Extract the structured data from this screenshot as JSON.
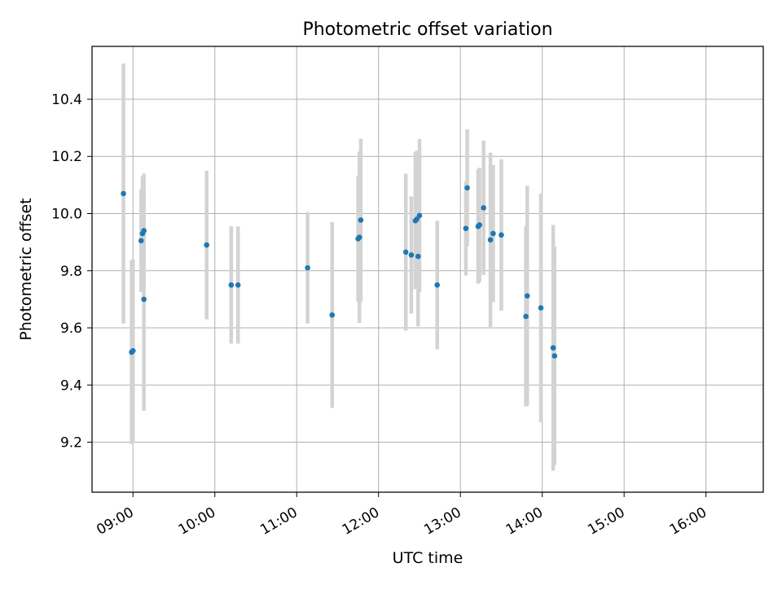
{
  "chart_data": {
    "type": "scatter",
    "title": "Photometric offset variation",
    "xlabel": "UTC time",
    "ylabel": "Photometric offset",
    "x_unit": "UTC hh:mm",
    "xlim": [
      "08:30",
      "16:42"
    ],
    "ylim": [
      9.025,
      10.585
    ],
    "xticks": [
      "09:00",
      "10:00",
      "11:00",
      "12:00",
      "13:00",
      "14:00",
      "15:00",
      "16:00"
    ],
    "yticks": [
      9.2,
      9.4,
      9.6,
      9.8,
      10.0,
      10.2,
      10.4
    ],
    "ytick_labels": [
      "9.2",
      "9.4",
      "9.6",
      "9.8",
      "10.0",
      "10.2",
      "10.4"
    ],
    "grid": true,
    "legend": "none",
    "series": [
      {
        "point_color": "#1f77b4",
        "errorbar_color": "#d3d3d3",
        "points": [
          {
            "x": "08:53",
            "y": 10.07,
            "yerr": 0.455
          },
          {
            "x": "08:59",
            "y": 9.515,
            "yerr": 0.322
          },
          {
            "x": "08:60",
            "y": 9.52,
            "yerr": 0.32
          },
          {
            "x": "09:06",
            "y": 9.905,
            "yerr": 0.18
          },
          {
            "x": "09:07",
            "y": 9.93,
            "yerr": 0.2
          },
          {
            "x": "09:08",
            "y": 9.94,
            "yerr": 0.2
          },
          {
            "x": "09:08",
            "y": 9.7,
            "yerr": 0.39
          },
          {
            "x": "09:54",
            "y": 9.89,
            "yerr": 0.26
          },
          {
            "x": "10:12",
            "y": 9.75,
            "yerr": 0.205
          },
          {
            "x": "10:17",
            "y": 9.75,
            "yerr": 0.205
          },
          {
            "x": "11:08",
            "y": 9.81,
            "yerr": 0.195
          },
          {
            "x": "11:26",
            "y": 9.645,
            "yerr": 0.325
          },
          {
            "x": "11:45",
            "y": 9.912,
            "yerr": 0.22
          },
          {
            "x": "11:46",
            "y": 9.917,
            "yerr": 0.3
          },
          {
            "x": "11:47",
            "y": 9.977,
            "yerr": 0.285
          },
          {
            "x": "12:20",
            "y": 9.865,
            "yerr": 0.275
          },
          {
            "x": "12:24",
            "y": 9.855,
            "yerr": 0.205
          },
          {
            "x": "12:27",
            "y": 9.975,
            "yerr": 0.24
          },
          {
            "x": "12:28",
            "y": 9.98,
            "yerr": 0.24
          },
          {
            "x": "12:29",
            "y": 9.85,
            "yerr": 0.245
          },
          {
            "x": "12:30",
            "y": 9.993,
            "yerr": 0.268
          },
          {
            "x": "12:43",
            "y": 9.75,
            "yerr": 0.225
          },
          {
            "x": "13:04",
            "y": 9.948,
            "yerr": 0.165
          },
          {
            "x": "13:05",
            "y": 10.09,
            "yerr": 0.205
          },
          {
            "x": "13:13",
            "y": 9.955,
            "yerr": 0.2
          },
          {
            "x": "13:14",
            "y": 9.96,
            "yerr": 0.2
          },
          {
            "x": "13:17",
            "y": 10.02,
            "yerr": 0.235
          },
          {
            "x": "13:22",
            "y": 9.908,
            "yerr": 0.305
          },
          {
            "x": "13:24",
            "y": 9.93,
            "yerr": 0.24
          },
          {
            "x": "13:30",
            "y": 9.925,
            "yerr": 0.265
          },
          {
            "x": "13:48",
            "y": 9.64,
            "yerr": 0.315
          },
          {
            "x": "13:49",
            "y": 9.712,
            "yerr": 0.385
          },
          {
            "x": "13:59",
            "y": 9.67,
            "yerr": 0.4
          },
          {
            "x": "14:08",
            "y": 9.53,
            "yerr": 0.43
          },
          {
            "x": "14:09",
            "y": 9.502,
            "yerr": 0.382
          }
        ]
      }
    ]
  }
}
